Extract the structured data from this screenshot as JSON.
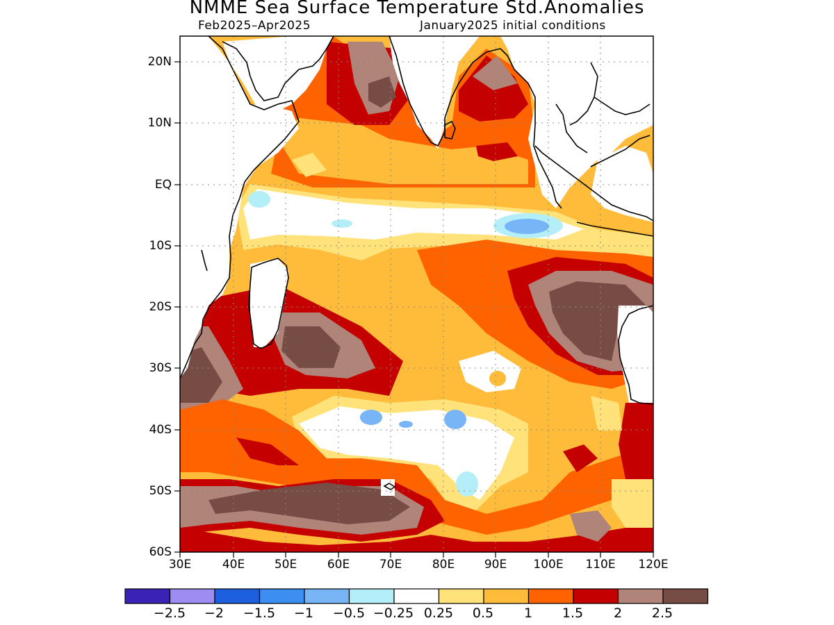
{
  "header": {
    "title": "NMME Sea Surface Temperature Std.Anomalies",
    "period": "Feb2025–Apr2025",
    "initial_conditions": "January2025 initial conditions"
  },
  "map": {
    "region": "Indian Ocean",
    "lon_range": [
      30,
      120
    ],
    "lat_range": [
      -60,
      24
    ],
    "lat_ticks": [
      "20N",
      "10N",
      "EQ",
      "10S",
      "20S",
      "30S",
      "40S",
      "50S",
      "60S"
    ],
    "lon_ticks": [
      "30E",
      "40E",
      "50E",
      "60E",
      "70E",
      "80E",
      "90E",
      "100E",
      "110E",
      "120E"
    ],
    "grid_lines": "dotted"
  },
  "colorbar": {
    "colors": [
      "#3a22b6",
      "#9e8cf2",
      "#1e5fe0",
      "#3c8ff0",
      "#78b5f7",
      "#b4eef8",
      "#ffffff",
      "#ffe37a",
      "#ffbb3a",
      "#ff6300",
      "#c40000",
      "#b08478",
      "#764c44"
    ],
    "labels": [
      "−2.5",
      "−2",
      "−1.5",
      "−1",
      "−0.5",
      "−0.25",
      "0.25",
      "0.5",
      "1",
      "1.5",
      "2",
      "2.5"
    ]
  }
}
